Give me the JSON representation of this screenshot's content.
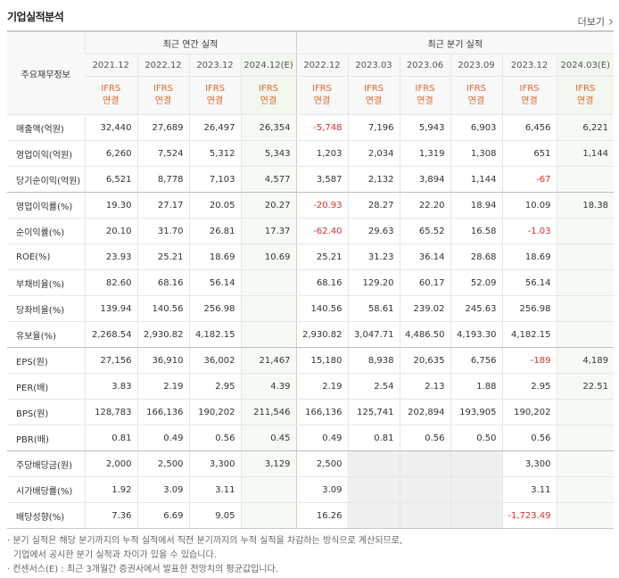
{
  "header": {
    "title": "기업실적분석",
    "more": "더보기"
  },
  "table": {
    "corner": "주요재무정보",
    "groups": [
      "최근 연간 실적",
      "최근 분기 실적"
    ],
    "periods": [
      "2021.12",
      "2022.12",
      "2023.12",
      "2024.12(E)",
      "2022.12",
      "2023.03",
      "2023.06",
      "2023.09",
      "2023.12",
      "2024.03(E)"
    ],
    "standard": "IFRS",
    "scope": "연결",
    "rows": [
      {
        "label": "매출액(억원)",
        "values": [
          "32,440",
          "27,689",
          "26,497",
          "26,354",
          "-5,748",
          "7,196",
          "5,943",
          "6,903",
          "6,456",
          "6,221"
        ]
      },
      {
        "label": "영업이익(억원)",
        "values": [
          "6,260",
          "7,524",
          "5,312",
          "5,343",
          "1,203",
          "2,034",
          "1,319",
          "1,308",
          "651",
          "1,144"
        ]
      },
      {
        "label": "당기순이익(억원)",
        "values": [
          "6,521",
          "8,778",
          "7,103",
          "4,577",
          "3,587",
          "2,132",
          "3,894",
          "1,144",
          "-67",
          null
        ]
      },
      {
        "label": "영업이익률(%)",
        "values": [
          "19.30",
          "27.17",
          "20.05",
          "20.27",
          "-20.93",
          "28.27",
          "22.20",
          "18.94",
          "10.09",
          "18.38"
        ]
      },
      {
        "label": "순이익률(%)",
        "values": [
          "20.10",
          "31.70",
          "26.81",
          "17.37",
          "-62.40",
          "29.63",
          "65.52",
          "16.58",
          "-1.03",
          null
        ]
      },
      {
        "label": "ROE(%)",
        "values": [
          "23.93",
          "25.21",
          "18.69",
          "10.69",
          "25.21",
          "31.23",
          "36.14",
          "28.68",
          "18.69",
          null
        ]
      },
      {
        "label": "부채비율(%)",
        "values": [
          "82.60",
          "68.16",
          "56.14",
          null,
          "68.16",
          "129.20",
          "60.17",
          "52.09",
          "56.14",
          null
        ]
      },
      {
        "label": "당좌비율(%)",
        "values": [
          "139.94",
          "140.56",
          "256.98",
          null,
          "140.56",
          "58.61",
          "239.02",
          "245.63",
          "256.98",
          null
        ]
      },
      {
        "label": "유보율(%)",
        "values": [
          "2,268.54",
          "2,930.82",
          "4,182.15",
          null,
          "2,930.82",
          "3,047.71",
          "4,486.50",
          "4,193.30",
          "4,182.15",
          null
        ]
      },
      {
        "label": "EPS(원)",
        "values": [
          "27,156",
          "36,910",
          "36,002",
          "21,467",
          "15,180",
          "8,938",
          "20,635",
          "6,756",
          "-189",
          "4,189"
        ]
      },
      {
        "label": "PER(배)",
        "values": [
          "3.83",
          "2.19",
          "2.95",
          "4.39",
          "2.19",
          "2.54",
          "2.13",
          "1.88",
          "2.95",
          "22.51"
        ]
      },
      {
        "label": "BPS(원)",
        "values": [
          "128,783",
          "166,136",
          "190,202",
          "211,546",
          "166,136",
          "125,741",
          "202,894",
          "193,905",
          "190,202",
          null
        ]
      },
      {
        "label": "PBR(배)",
        "values": [
          "0.81",
          "0.49",
          "0.56",
          "0.45",
          "0.49",
          "0.81",
          "0.56",
          "0.50",
          "0.56",
          null
        ]
      },
      {
        "label": "주당배당금(원)",
        "values": [
          "2,000",
          "2,500",
          "3,300",
          "3,129",
          "2,500",
          null,
          null,
          null,
          "3,300",
          null
        ]
      },
      {
        "label": "시가배당률(%)",
        "values": [
          "1.92",
          "3.09",
          "3.11",
          null,
          "3.09",
          null,
          null,
          null,
          "3.11",
          null
        ]
      },
      {
        "label": "배당성향(%)",
        "values": [
          "7.36",
          "6.69",
          "9.05",
          null,
          "16.26",
          null,
          null,
          null,
          "-1,723.49",
          null
        ]
      }
    ]
  },
  "notes": [
    [
      "분기 실적은 해당 분기까지의 누적 실적에서 직전 분기까지의 누적 실적을 차감하는 방식으로 계산되므로,",
      "기업에서 공시한 분기 실적과 차이가 있을 수 있습니다."
    ],
    [
      "컨센서스(E) : 최근 3개월간 증권사에서 발표한 전망치의 평균값입니다."
    ]
  ]
}
